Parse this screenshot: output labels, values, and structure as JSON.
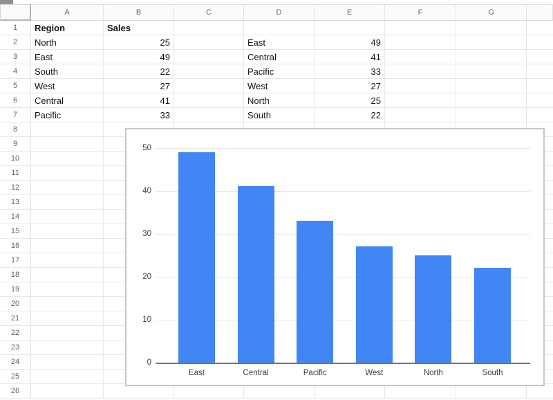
{
  "sheet": {
    "column_headers": [
      "A",
      "B",
      "C",
      "D",
      "E",
      "F",
      "G"
    ],
    "row_count": 26,
    "cells": [
      {
        "ref": "A1",
        "text": "Region",
        "bold": true
      },
      {
        "ref": "B1",
        "text": "Sales",
        "bold": true
      },
      {
        "ref": "A2",
        "text": "North"
      },
      {
        "ref": "B2",
        "text": "25",
        "align": "right"
      },
      {
        "ref": "A3",
        "text": "East"
      },
      {
        "ref": "B3",
        "text": "49",
        "align": "right"
      },
      {
        "ref": "A4",
        "text": "South"
      },
      {
        "ref": "B4",
        "text": "22",
        "align": "right"
      },
      {
        "ref": "A5",
        "text": "West"
      },
      {
        "ref": "B5",
        "text": "27",
        "align": "right"
      },
      {
        "ref": "A6",
        "text": "Central"
      },
      {
        "ref": "B6",
        "text": "41",
        "align": "right"
      },
      {
        "ref": "A7",
        "text": "Pacific"
      },
      {
        "ref": "B7",
        "text": "33",
        "align": "right"
      },
      {
        "ref": "D2",
        "text": "East"
      },
      {
        "ref": "E2",
        "text": "49",
        "align": "right"
      },
      {
        "ref": "D3",
        "text": "Central"
      },
      {
        "ref": "E3",
        "text": "41",
        "align": "right"
      },
      {
        "ref": "D4",
        "text": "Pacific"
      },
      {
        "ref": "E4",
        "text": "33",
        "align": "right"
      },
      {
        "ref": "D5",
        "text": "West"
      },
      {
        "ref": "E5",
        "text": "27",
        "align": "right"
      },
      {
        "ref": "D6",
        "text": "North"
      },
      {
        "ref": "E6",
        "text": "25",
        "align": "right"
      },
      {
        "ref": "D7",
        "text": "South"
      },
      {
        "ref": "E7",
        "text": "22",
        "align": "right"
      }
    ]
  },
  "chart_data": {
    "type": "bar",
    "categories": [
      "East",
      "Central",
      "Pacific",
      "West",
      "North",
      "South"
    ],
    "values": [
      49,
      41,
      33,
      27,
      25,
      22
    ],
    "title": "",
    "xlabel": "",
    "ylabel": "",
    "ylim": [
      0,
      50
    ],
    "y_ticks": [
      0,
      10,
      20,
      30,
      40,
      50
    ],
    "grid": true,
    "legend": false,
    "bar_color": "#4285f4"
  },
  "colors": {
    "bar_blue": "#4285f4",
    "gridline": "#e6e6e6",
    "axis": "#747474",
    "header_text": "#5f6368"
  }
}
